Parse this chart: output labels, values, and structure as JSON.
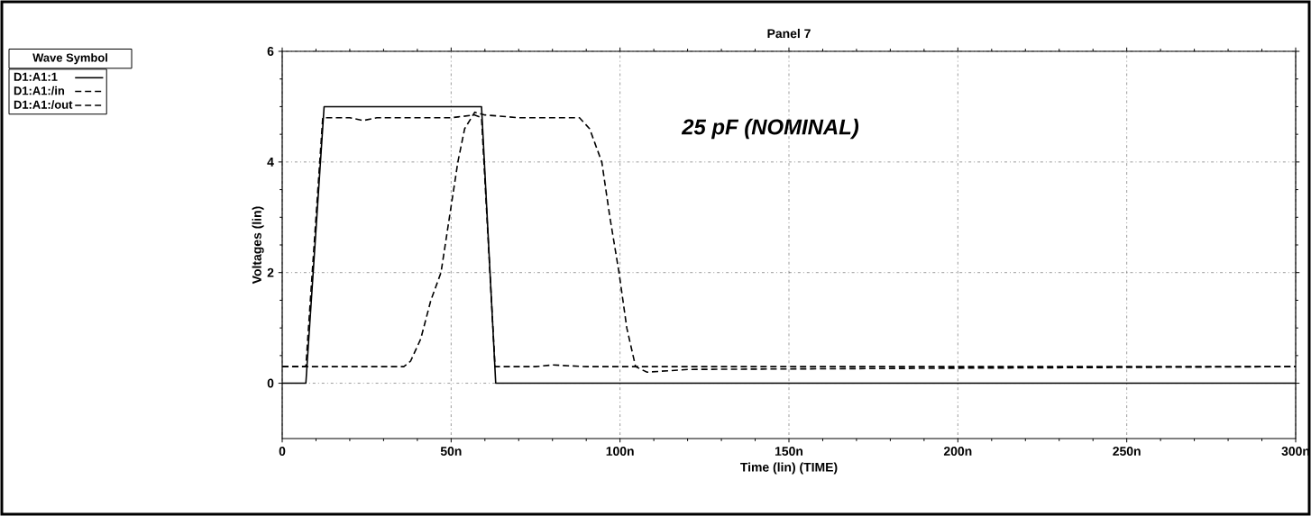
{
  "chart_data": {
    "type": "line",
    "title": "Panel 7",
    "xlabel": "Time (lin) (TIME)",
    "ylabel": "Voltages (lin)",
    "legend_title": "Wave    Symbol",
    "annotations": [
      "25 pF (NOMINAL)"
    ],
    "xlim": [
      0,
      300
    ],
    "ylim": [
      -1,
      6
    ],
    "xticks": [
      {
        "value": 0,
        "label": "0"
      },
      {
        "value": 50,
        "label": "50n"
      },
      {
        "value": 100,
        "label": "100n"
      },
      {
        "value": 150,
        "label": "150n"
      },
      {
        "value": 200,
        "label": "200n"
      },
      {
        "value": 250,
        "label": "250n"
      },
      {
        "value": 300,
        "label": "300n"
      }
    ],
    "yticks": [
      0,
      2,
      4,
      6
    ],
    "grid": true,
    "legend": "left",
    "series": [
      {
        "name": "D1:A1:1",
        "color": "#000000",
        "line_style": "solid",
        "x": [
          0,
          7,
          12.4,
          59,
          63.2,
          300
        ],
        "values": [
          0,
          0,
          5,
          5,
          0,
          0
        ]
      },
      {
        "name": "D1:A1:/in",
        "color": "#000000",
        "line_style": "dashed",
        "x": [
          0,
          7,
          12,
          20,
          24,
          28,
          40,
          50,
          57,
          59,
          63,
          75,
          80,
          90,
          110,
          150,
          200,
          300
        ],
        "values": [
          0.3,
          0.3,
          4.8,
          4.8,
          4.75,
          4.8,
          4.8,
          4.8,
          4.85,
          4.8,
          0.3,
          0.3,
          0.33,
          0.3,
          0.3,
          0.3,
          0.3,
          0.3
        ]
      },
      {
        "name": "D1:A1:/out",
        "color": "#000000",
        "line_style": "dashed",
        "x": [
          0,
          36,
          38,
          41,
          44,
          47,
          50,
          52,
          54,
          57,
          60,
          70,
          80,
          88,
          91,
          94.6,
          97,
          99.7,
          102,
          104.6,
          108,
          120,
          300
        ],
        "values": [
          0.3,
          0.3,
          0.4,
          0.8,
          1.5,
          2,
          3.2,
          4,
          4.6,
          4.9,
          4.85,
          4.8,
          4.8,
          4.8,
          4.6,
          4,
          3,
          2,
          1,
          0.3,
          0.2,
          0.25,
          0.3
        ]
      }
    ]
  }
}
